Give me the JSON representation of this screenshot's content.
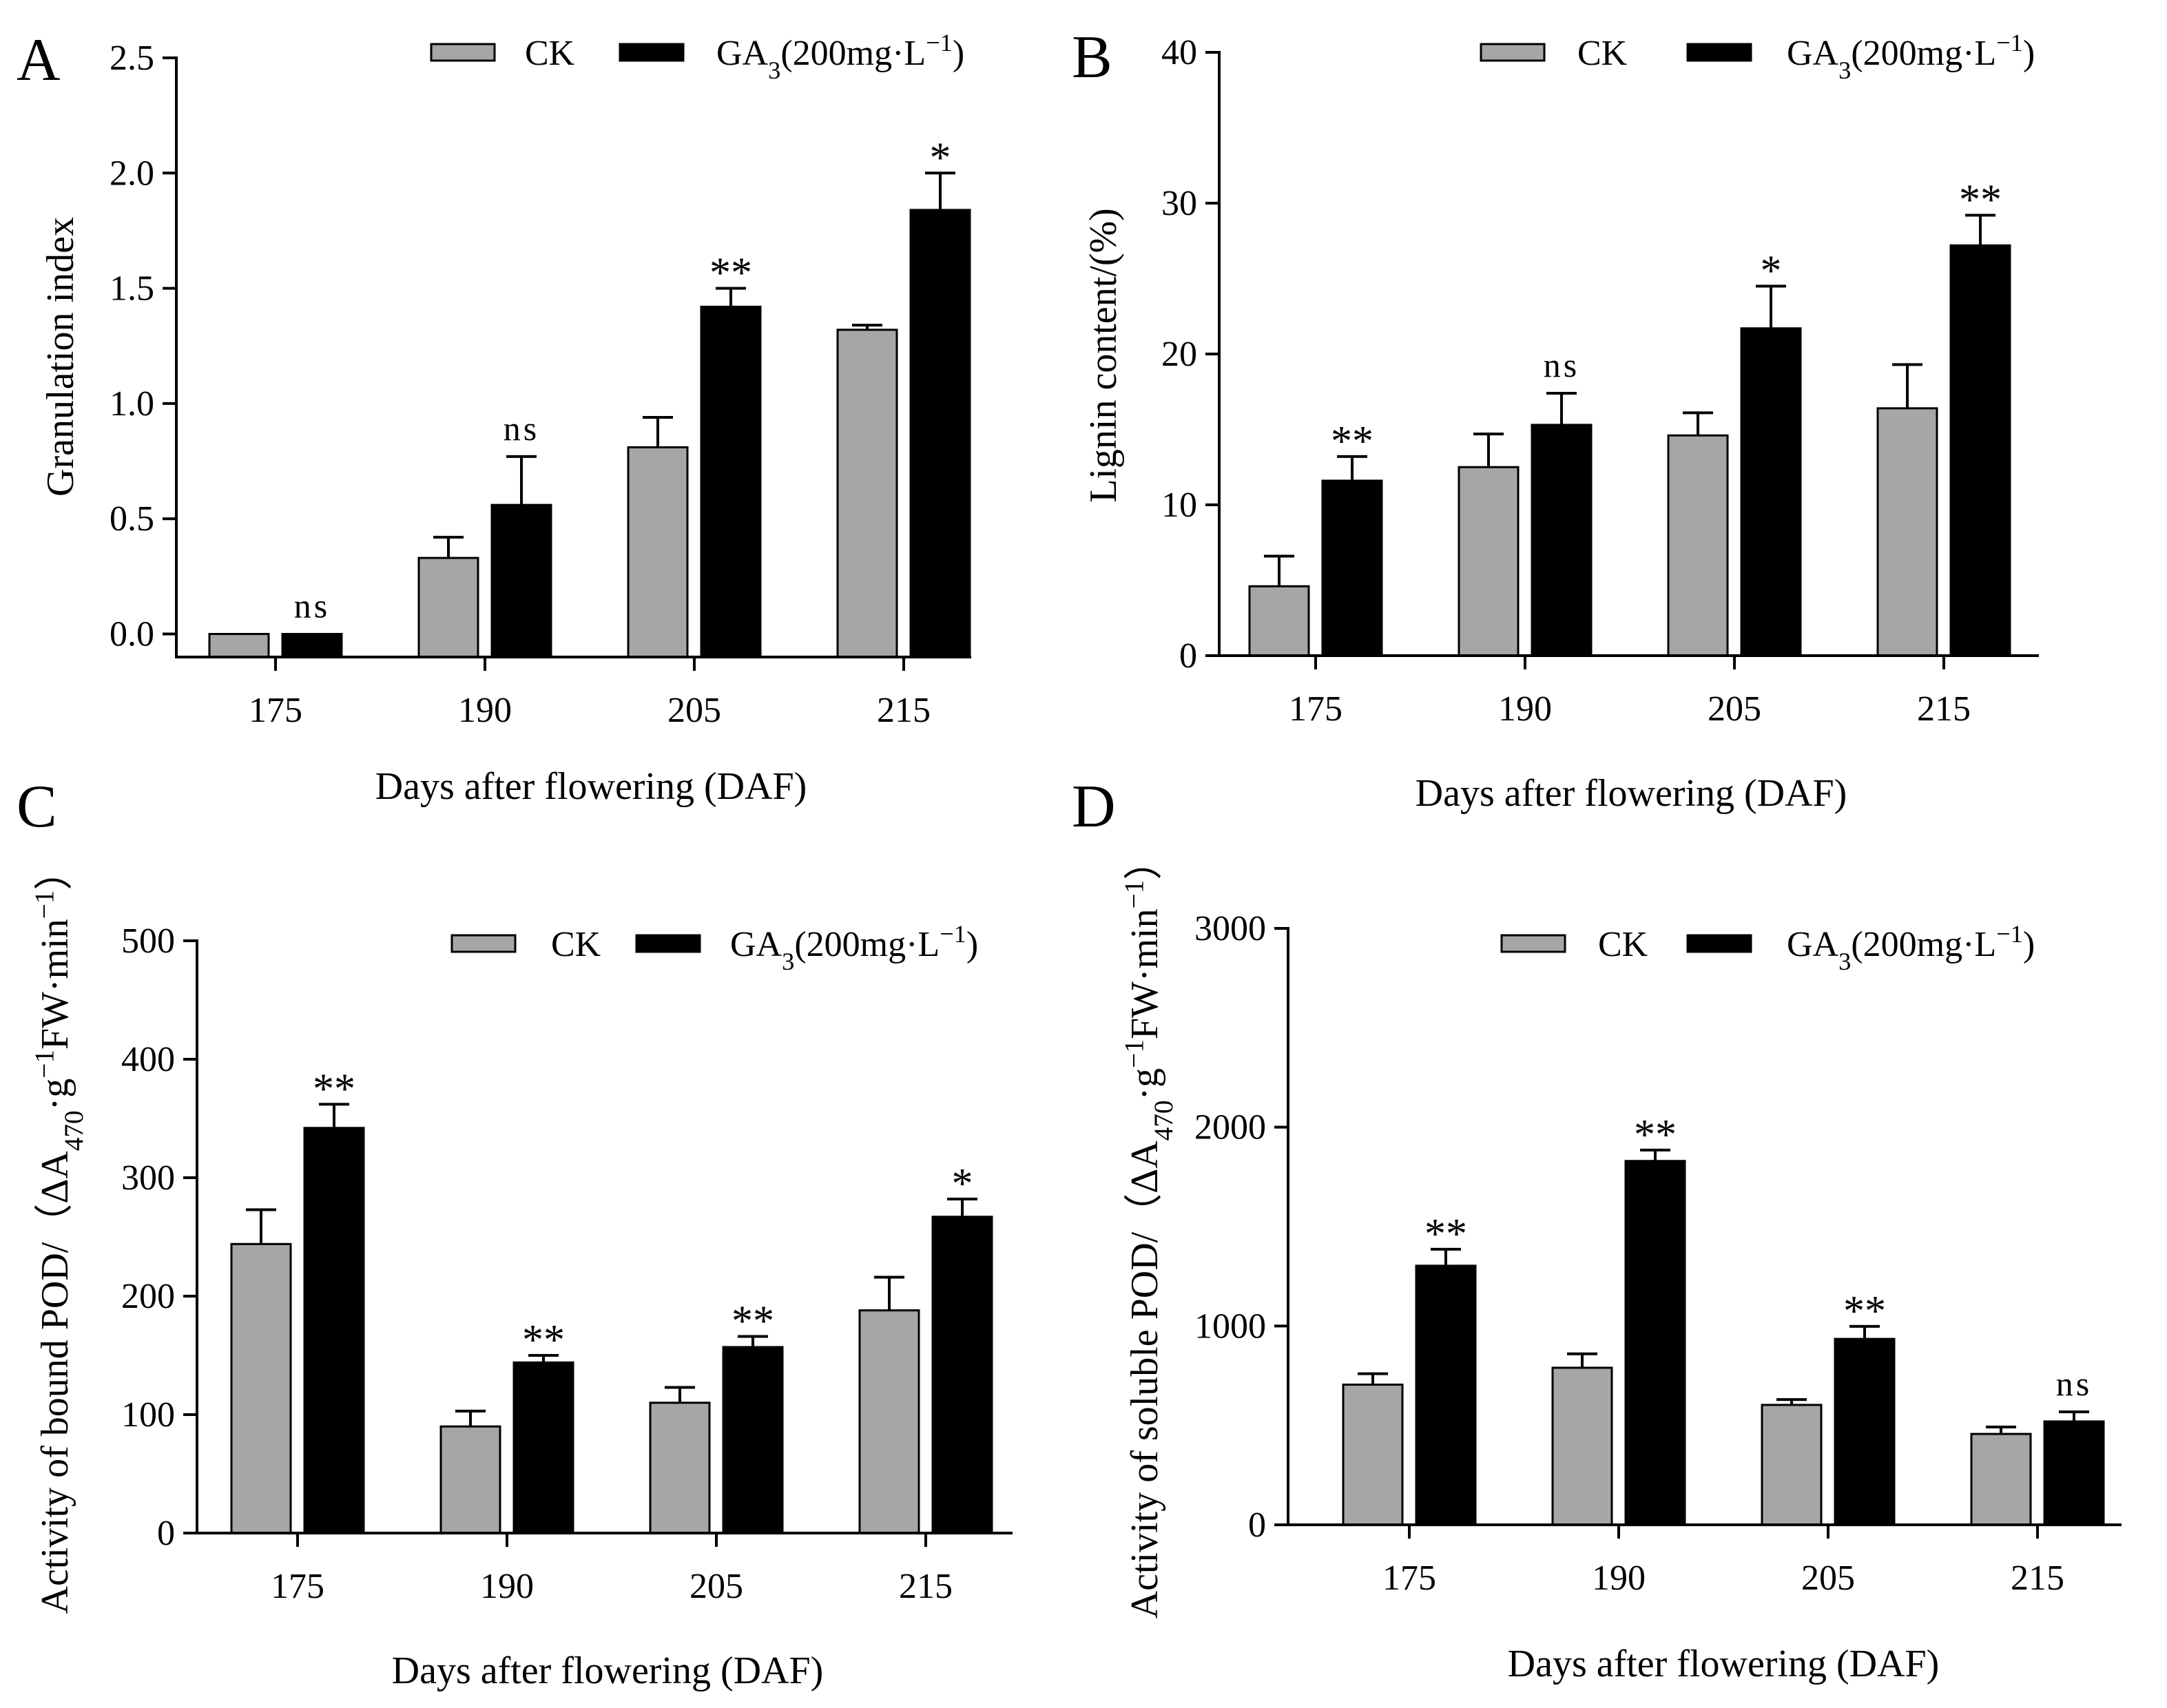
{
  "chart_data": [
    {
      "panel_label": "A",
      "type": "bar",
      "categories": [
        "175",
        "190",
        "205",
        "215"
      ],
      "xlabel": "Days after flowering (DAF)",
      "ylabel": [
        {
          "t": "Granulation index"
        }
      ],
      "ylim": [
        -0.1,
        2.5
      ],
      "yticks": [
        0,
        0.5,
        1.0,
        1.5,
        2.0,
        2.5
      ],
      "ytick_labels": [
        "0.0",
        "0.5",
        "1.0",
        "1.5",
        "2.0",
        "2.5"
      ],
      "grid": false,
      "series": [
        {
          "label": [
            {
              "t": "CK"
            }
          ],
          "color": "#a6a6a6",
          "values": [
            0.0,
            0.33,
            0.81,
            1.32
          ],
          "errors": [
            0,
            0.09,
            0.13,
            0.02
          ]
        },
        {
          "label": [
            {
              "t": "GA"
            },
            {
              "t": "3",
              "sub": true
            },
            {
              "t": "(200mg·L"
            },
            {
              "t": "−1",
              "sup": true
            },
            {
              "t": ")"
            }
          ],
          "color": "#000000",
          "values": [
            0.0,
            0.56,
            1.42,
            1.84
          ],
          "errors": [
            0,
            0.21,
            0.08,
            0.16
          ]
        }
      ],
      "significance": [
        "ns",
        "ns",
        "**",
        "*"
      ]
    },
    {
      "panel_label": "B",
      "type": "bar",
      "categories": [
        "175",
        "190",
        "205",
        "215"
      ],
      "xlabel": "Days after flowering (DAF)",
      "ylabel": [
        {
          "t": "Lignin content/(%)"
        }
      ],
      "ylim": [
        0,
        40
      ],
      "yticks": [
        0,
        10,
        20,
        30,
        40
      ],
      "ytick_labels": [
        "0",
        "10",
        "20",
        "30",
        "40"
      ],
      "grid": false,
      "series": [
        {
          "label": [
            {
              "t": "CK"
            }
          ],
          "color": "#a6a6a6",
          "values": [
            4.6,
            12.5,
            14.6,
            16.4
          ],
          "errors": [
            2.0,
            2.2,
            1.5,
            2.9
          ]
        },
        {
          "label": [
            {
              "t": "GA"
            },
            {
              "t": "3",
              "sub": true
            },
            {
              "t": "(200mg·L"
            },
            {
              "t": "−1",
              "sup": true
            },
            {
              "t": ")"
            }
          ],
          "color": "#000000",
          "values": [
            11.6,
            15.3,
            21.7,
            27.2
          ],
          "errors": [
            1.6,
            2.1,
            2.8,
            2.0
          ]
        }
      ],
      "significance": [
        "**",
        "ns",
        "*",
        "**"
      ]
    },
    {
      "panel_label": "C",
      "type": "bar",
      "categories": [
        "175",
        "190",
        "205",
        "215"
      ],
      "xlabel": "Days after flowering (DAF)",
      "ylabel": [
        {
          "t": "Activity of bound POD/（ΔA"
        },
        {
          "t": "470",
          "sub": true
        },
        {
          "t": "·g"
        },
        {
          "t": "−1",
          "sup": true
        },
        {
          "t": "FW·min"
        },
        {
          "t": "−1",
          "sup": true
        },
        {
          "t": "）"
        }
      ],
      "ylim": [
        0,
        500
      ],
      "yticks": [
        0,
        100,
        200,
        300,
        400,
        500
      ],
      "ytick_labels": [
        "0",
        "100",
        "200",
        "300",
        "400",
        "500"
      ],
      "grid": false,
      "series": [
        {
          "label": [
            {
              "t": "CK"
            }
          ],
          "color": "#a6a6a6",
          "values": [
            244,
            90,
            110,
            188
          ],
          "errors": [
            29,
            13,
            13,
            28
          ]
        },
        {
          "label": [
            {
              "t": "GA"
            },
            {
              "t": "3",
              "sub": true
            },
            {
              "t": "(200mg·L"
            },
            {
              "t": "−1",
              "sup": true
            },
            {
              "t": ")"
            }
          ],
          "color": "#000000",
          "values": [
            342,
            144,
            157,
            267
          ],
          "errors": [
            20,
            6,
            9,
            15
          ]
        }
      ],
      "significance": [
        "**",
        "**",
        "**",
        "*"
      ]
    },
    {
      "panel_label": "D",
      "type": "bar",
      "categories": [
        "175",
        "190",
        "205",
        "215"
      ],
      "xlabel": "Days after flowering (DAF)",
      "ylabel": [
        {
          "t": "Activity of soluble POD/（ΔA"
        },
        {
          "t": "470",
          "sub": true
        },
        {
          "t": "·g"
        },
        {
          "t": "−1",
          "sup": true
        },
        {
          "t": "FW·min"
        },
        {
          "t": "−1",
          "sup": true
        },
        {
          "t": "）"
        }
      ],
      "ylim": [
        0,
        3000
      ],
      "yticks": [
        0,
        1000,
        2000,
        3000
      ],
      "ytick_labels": [
        "0",
        "1000",
        "2000",
        "3000"
      ],
      "grid": false,
      "series": [
        {
          "label": [
            {
              "t": "CK"
            }
          ],
          "color": "#a6a6a6",
          "values": [
            705,
            790,
            603,
            457
          ],
          "errors": [
            55,
            70,
            27,
            35
          ]
        },
        {
          "label": [
            {
              "t": "GA"
            },
            {
              "t": "3",
              "sub": true
            },
            {
              "t": "(200mg·L"
            },
            {
              "t": "−1",
              "sup": true
            },
            {
              "t": ")"
            }
          ],
          "color": "#000000",
          "values": [
            1303,
            1830,
            935,
            520
          ],
          "errors": [
            83,
            55,
            63,
            48
          ]
        }
      ],
      "significance": [
        "**",
        "**",
        "**",
        "ns"
      ]
    }
  ]
}
